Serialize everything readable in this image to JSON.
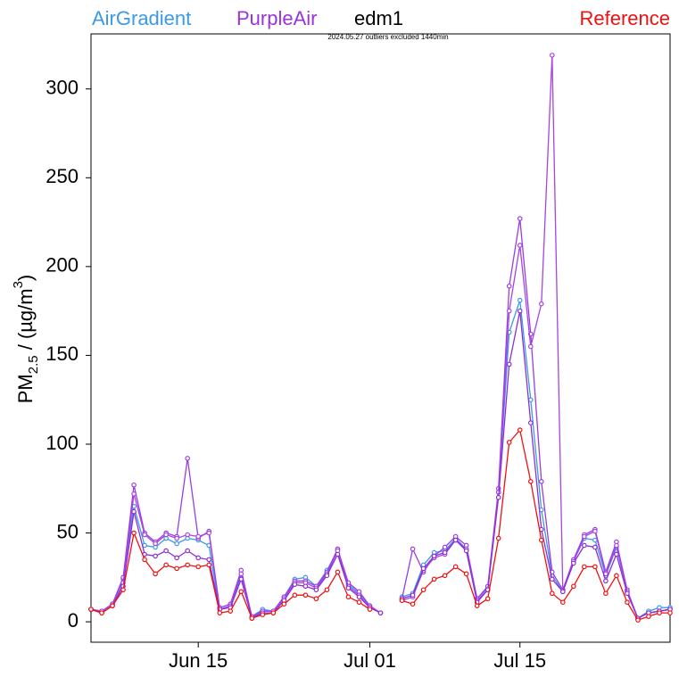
{
  "chart_data": {
    "type": "line",
    "title": "edm1",
    "subtitle": "2024.05.27 outliers excluded 1440min",
    "ylabel": {
      "main": "PM",
      "sub": "2.5",
      "mid": " / (µg/m",
      "sup": "3",
      "end": ")"
    },
    "legend": [
      {
        "name": "AirGradient",
        "color": "#3a9ae8"
      },
      {
        "name": "PurpleAir",
        "color": "#9933dd"
      },
      {
        "name": "Reference",
        "color": "#ee1111"
      }
    ],
    "categories": [
      "Jun 05",
      "Jun 06",
      "Jun 07",
      "Jun 08",
      "Jun 09",
      "Jun 10",
      "Jun 11",
      "Jun 12",
      "Jun 13",
      "Jun 14",
      "Jun 15",
      "Jun 16",
      "Jun 17",
      "Jun 18",
      "Jun 19",
      "Jun 20",
      "Jun 21",
      "Jun 22",
      "Jun 23",
      "Jun 24",
      "Jun 25",
      "Jun 26",
      "Jun 27",
      "Jun 28",
      "Jun 29",
      "Jun 30",
      "Jul 01",
      "Jul 02",
      "Jul 03",
      "Jul 04",
      "Jul 05",
      "Jul 06",
      "Jul 07",
      "Jul 08",
      "Jul 09",
      "Jul 10",
      "Jul 11",
      "Jul 12",
      "Jul 13",
      "Jul 14",
      "Jul 15",
      "Jul 16",
      "Jul 17",
      "Jul 18",
      "Jul 19",
      "Jul 20",
      "Jul 21",
      "Jul 22",
      "Jul 23",
      "Jul 24",
      "Jul 25",
      "Jul 26",
      "Jul 27",
      "Jul 28",
      "Jul 29"
    ],
    "series": [
      {
        "color": "#3a9ae8",
        "values": [
          7,
          6,
          10,
          24,
          65,
          43,
          42,
          47,
          44,
          47,
          46,
          43,
          7,
          9,
          25,
          3,
          7,
          6,
          14,
          24,
          25,
          20,
          29,
          40,
          21,
          16,
          9,
          null,
          null,
          14,
          16,
          32,
          39,
          40,
          47,
          41,
          13,
          19,
          73,
          163,
          181,
          125,
          63,
          26,
          17,
          34,
          47,
          46,
          26,
          42,
          17,
          2,
          6,
          8,
          8
        ]
      },
      {
        "color": "#9a3de0",
        "values": [
          7,
          6,
          10,
          25,
          77,
          50,
          45,
          50,
          48,
          92,
          47,
          51,
          8,
          10,
          29,
          3,
          6,
          6,
          14,
          23,
          23,
          20,
          28,
          41,
          22,
          17,
          9,
          5,
          null,
          13,
          41,
          28,
          37,
          42,
          48,
          43,
          13,
          20,
          75,
          189,
          227,
          162,
          79,
          28,
          18,
          35,
          49,
          52,
          28,
          45,
          18,
          2,
          5,
          6,
          7
        ]
      },
      {
        "color": "#a644e6",
        "values": [
          7,
          5,
          9,
          22,
          72,
          49,
          44,
          49,
          47,
          49,
          48,
          50,
          7,
          9,
          27,
          2,
          6,
          6,
          13,
          22,
          22,
          19,
          27,
          40,
          20,
          15,
          8,
          5,
          null,
          12,
          14,
          29,
          36,
          38,
          46,
          41,
          12,
          18,
          73,
          175,
          212,
          155,
          179,
          319,
          17,
          34,
          48,
          51,
          27,
          43,
          17,
          2,
          5,
          6,
          7
        ]
      },
      {
        "color": "#8c2fd6",
        "values": [
          7,
          5,
          9,
          20,
          62,
          38,
          37,
          40,
          36,
          40,
          36,
          35,
          7,
          8,
          24,
          2,
          5,
          5,
          12,
          21,
          20,
          18,
          26,
          38,
          19,
          14,
          8,
          5,
          null,
          13,
          15,
          30,
          37,
          39,
          46,
          40,
          11,
          18,
          70,
          145,
          175,
          112,
          52,
          24,
          17,
          33,
          43,
          42,
          23,
          38,
          16,
          2,
          5,
          6,
          7
        ]
      },
      {
        "color": "#ee1111",
        "values": [
          7,
          5,
          9,
          18,
          50,
          35,
          27,
          32,
          30,
          32,
          31,
          32,
          5,
          6,
          17,
          2,
          4,
          5,
          10,
          15,
          15,
          13,
          18,
          28,
          14,
          11,
          7,
          null,
          null,
          12,
          10,
          18,
          24,
          26,
          31,
          27,
          9,
          13,
          47,
          101,
          108,
          79,
          46,
          16,
          11,
          20,
          31,
          31,
          16,
          26,
          11,
          1,
          3,
          5,
          5
        ]
      }
    ],
    "xticks": [
      "Jun 15",
      "Jul 01",
      "Jul 15"
    ],
    "ylim": [
      -11.5,
      331
    ],
    "yticks": [
      0,
      50,
      100,
      150,
      200,
      250,
      300
    ]
  }
}
